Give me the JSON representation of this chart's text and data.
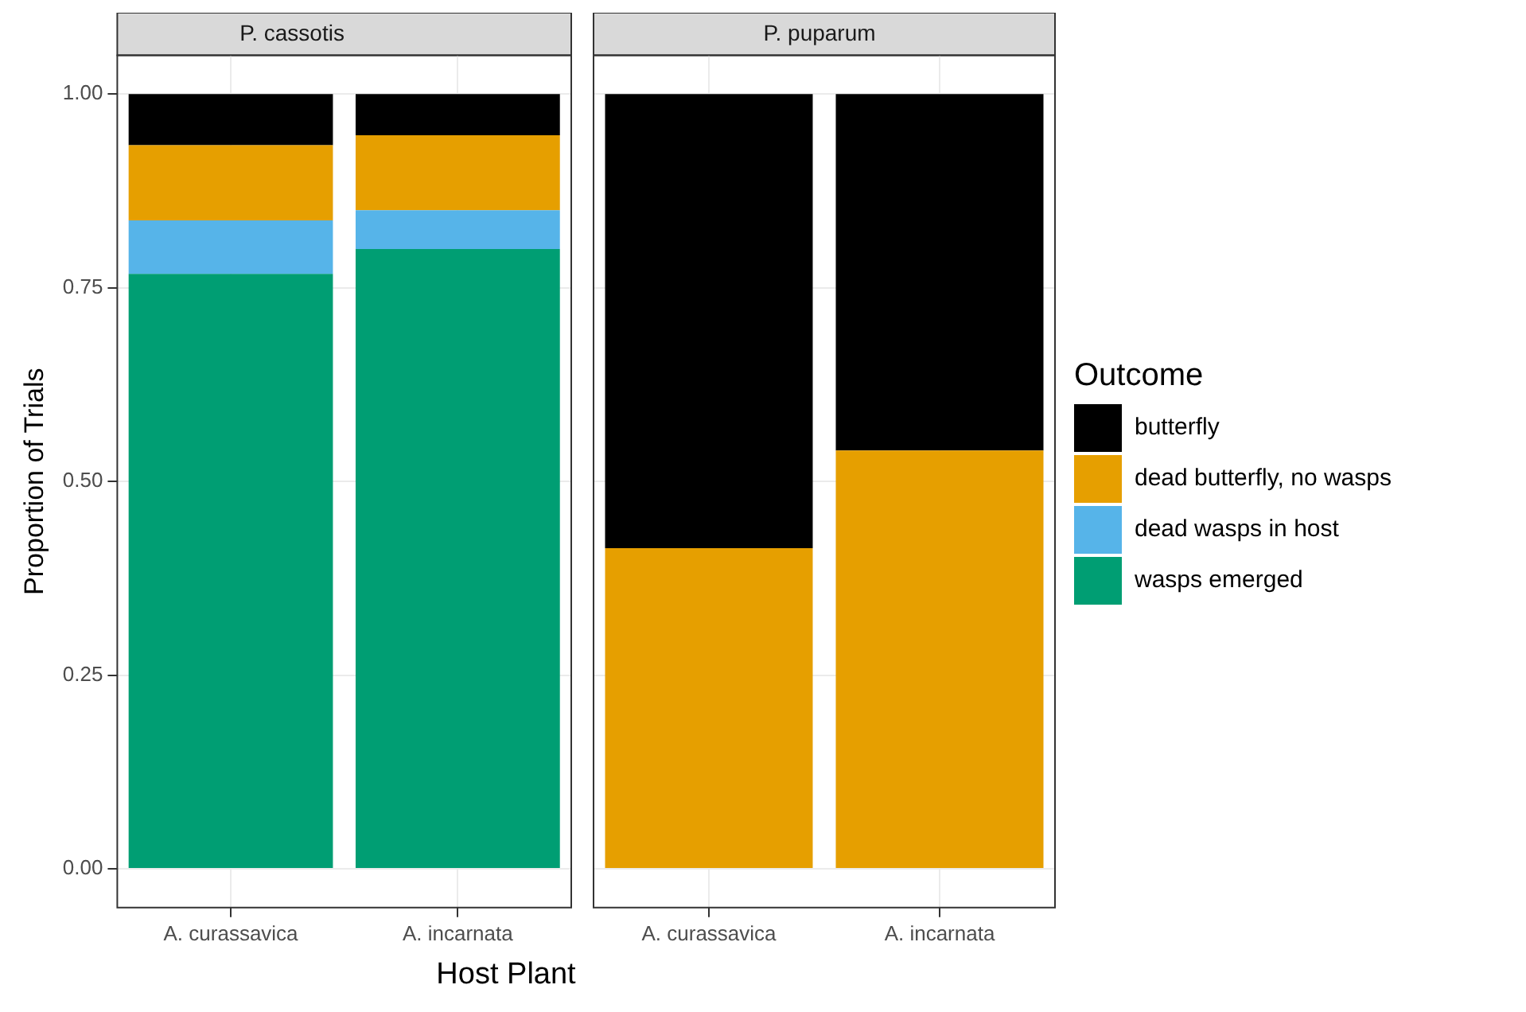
{
  "chart_data": [
    {
      "type": "bar",
      "title": "P. cassotis",
      "xlabel": "Host Plant",
      "ylabel": "Proportion of Trials",
      "categories": [
        "A. curassavica",
        "A. incarnata"
      ],
      "stacked": true,
      "grid": true,
      "legend": false,
      "ylim": [
        -0.05,
        1.05
      ],
      "yticks": [
        {
          "value": 0,
          "label": "0.00"
        },
        {
          "value": 0.25,
          "label": "0.25"
        },
        {
          "value": 0.5,
          "label": "0.50"
        },
        {
          "value": 0.75,
          "label": "0.75"
        },
        {
          "value": 1,
          "label": "1.00"
        }
      ],
      "series": [
        {
          "color": "#009e73",
          "values": [
            0.768,
            0.8
          ]
        },
        {
          "color": "#56b4e9",
          "values": [
            0.069,
            0.05
          ]
        },
        {
          "color": "#e69f00",
          "values": [
            0.097,
            0.097
          ]
        },
        {
          "color": "#000000",
          "values": [
            0.066,
            0.053
          ]
        }
      ]
    },
    {
      "type": "bar",
      "title": "P. puparum",
      "categories": [
        "A. curassavica",
        "A. incarnata"
      ],
      "stacked": true,
      "grid": true,
      "legend": "right",
      "legend_title": "Outcome",
      "tick_labels": "x",
      "ylim": [
        -0.05,
        1.05
      ],
      "yticks": [
        {
          "value": 0,
          "label": null
        },
        {
          "value": 0.25,
          "label": null
        },
        {
          "value": 0.5,
          "label": null
        },
        {
          "value": 0.75,
          "label": null
        },
        {
          "value": 1,
          "label": null
        }
      ],
      "series": [
        {
          "name": "wasps emerged",
          "color": "#009e73",
          "values": [
            0,
            0
          ]
        },
        {
          "name": "dead wasps in host",
          "color": "#56b4e9",
          "values": [
            0,
            0
          ]
        },
        {
          "name": "dead butterfly, no wasps",
          "color": "#e69f00",
          "values": [
            0.414,
            0.54
          ]
        },
        {
          "name": "butterfly",
          "color": "#000000",
          "values": [
            0.586,
            0.46
          ]
        }
      ]
    }
  ]
}
